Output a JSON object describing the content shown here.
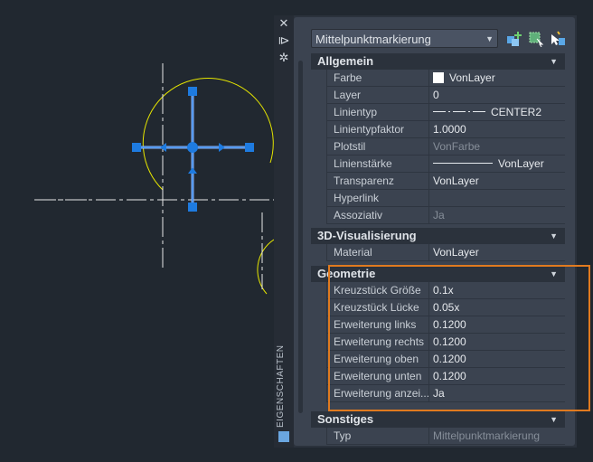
{
  "palette": {
    "title": "EIGENSCHAFTEN",
    "object_type": "Mittelpunktmarkierung",
    "sections": [
      {
        "title": "Allgemein",
        "rows": [
          {
            "label": "Farbe",
            "value": "VonLayer"
          },
          {
            "label": "Layer",
            "value": "0"
          },
          {
            "label": "Linientyp",
            "value": "CENTER2"
          },
          {
            "label": "Linientypfaktor",
            "value": "1.0000"
          },
          {
            "label": "Plotstil",
            "value": "VonFarbe"
          },
          {
            "label": "Linienstärke",
            "value": "VonLayer"
          },
          {
            "label": "Transparenz",
            "value": "VonLayer"
          },
          {
            "label": "Hyperlink",
            "value": ""
          },
          {
            "label": "Assoziativ",
            "value": "Ja"
          }
        ]
      },
      {
        "title": "3D-Visualisierung",
        "rows": [
          {
            "label": "Material",
            "value": "VonLayer"
          }
        ]
      },
      {
        "title": "Geometrie",
        "rows": [
          {
            "label": "Kreuzstück Größe",
            "value": "0.1x"
          },
          {
            "label": "Kreuzstück Lücke",
            "value": "0.05x"
          },
          {
            "label": "Erweiterung links",
            "value": "0.1200"
          },
          {
            "label": "Erweiterung rechts",
            "value": "0.1200"
          },
          {
            "label": "Erweiterung oben",
            "value": "0.1200"
          },
          {
            "label": "Erweiterung unten",
            "value": "0.1200"
          },
          {
            "label": "Erweiterung  anzei...",
            "value": "Ja"
          }
        ]
      },
      {
        "title": "Sonstiges",
        "rows": [
          {
            "label": "Typ",
            "value": "Mittelpunktmarkierung"
          }
        ]
      }
    ]
  },
  "colors": {
    "highlight": "#e07a1f",
    "grip": "#1e7be0",
    "geometry": "#e6e600"
  }
}
